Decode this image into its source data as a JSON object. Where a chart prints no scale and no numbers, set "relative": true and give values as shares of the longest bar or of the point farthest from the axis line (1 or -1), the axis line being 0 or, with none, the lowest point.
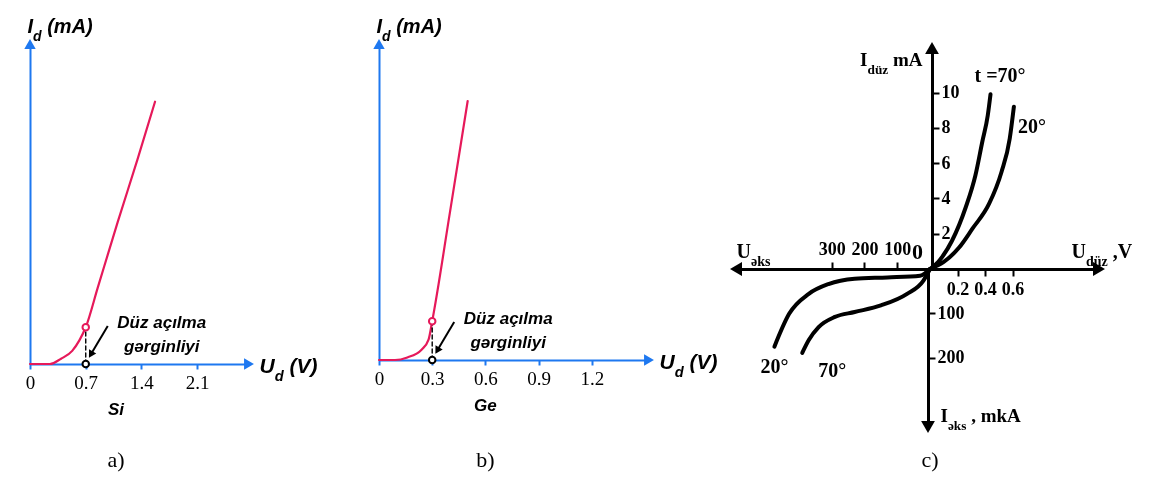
{
  "chart_data": [
    {
      "type": "line",
      "relative": true,
      "xlabel": "U$_{d}$ (V)",
      "ylabel": "I$_{d}$ (mA)",
      "xlim": [
        0,
        2.7
      ],
      "xticks": [
        0,
        0.7,
        1.4,
        2.1
      ],
      "x": [
        0,
        0.25,
        0.39,
        0.53,
        0.62,
        0.7,
        0.85,
        1.1,
        1.35,
        1.57
      ],
      "series": [
        {
          "color": "#e6195a",
          "values": [
            0,
            0,
            0.02,
            0.05,
            0.09,
            0.14,
            0.29,
            0.54,
            0.78,
            1
          ]
        },
        {
          "type": "line",
          "line_style": "dashed",
          "color": "#000000",
          "x": [
            0.7,
            0.7
          ],
          "values": [
            0,
            0.14
          ]
        },
        {
          "type": "scatter",
          "marker": "circle",
          "color": "#e6195a",
          "x": [
            0.7
          ],
          "values": [
            0.14
          ]
        },
        {
          "type": "scatter",
          "marker": "circle",
          "color": "#000000",
          "x": [
            0.7
          ],
          "values": [
            0
          ]
        }
      ],
      "annotations": [
        {
          "text": "Düz açılma gərginliyi",
          "x": 0.7,
          "y": 0
        },
        "Si",
        "a)"
      ]
    },
    {
      "type": "line",
      "relative": true,
      "xlabel": "U$_{d}$ (V)",
      "ylabel": "I$_{d}$ (mA)",
      "xlim": [
        0,
        1.5
      ],
      "xticks": [
        0,
        0.3,
        0.6,
        0.9,
        1.2
      ],
      "x": [
        0,
        0.09,
        0.16,
        0.24,
        0.28,
        0.3,
        0.4,
        0.5
      ],
      "series": [
        {
          "color": "#e6195a",
          "values": [
            0,
            0,
            0.01,
            0.04,
            0.08,
            0.15,
            0.57,
            1
          ]
        },
        {
          "type": "line",
          "line_style": "dashed",
          "color": "#000000",
          "x": [
            0.3,
            0.3
          ],
          "values": [
            0,
            0.15
          ]
        },
        {
          "type": "scatter",
          "marker": "circle",
          "color": "#e6195a",
          "x": [
            0.3
          ],
          "values": [
            0.15
          ]
        },
        {
          "type": "scatter",
          "marker": "circle",
          "color": "#000000",
          "x": [
            0.3
          ],
          "values": [
            0
          ]
        }
      ],
      "annotations": [
        {
          "text": "Düz açılma gərginliyi",
          "x": 0.3,
          "y": 0
        },
        "Ge",
        "b)"
      ]
    },
    {
      "type": "line",
      "xlabel": "U$_{düz}$ ,V",
      "ylabel": "I$_{düz}$ mA",
      "xlim": [
        0,
        1.2
      ],
      "xticks": [
        0.2,
        0.4,
        0.6
      ],
      "ylim": [
        0,
        12.3
      ],
      "yticks": [
        2,
        4,
        6,
        8,
        10
      ],
      "series": [
        {
          "name": "t =70°",
          "color": "#000000",
          "x": [
            0,
            0.07,
            0.16,
            0.26,
            0.33,
            0.38,
            0.42,
            0.44
          ],
          "values": [
            0,
            0.5,
            1.6,
            3.5,
            5.3,
            7.2,
            8.7,
            9.9
          ]
        },
        {
          "name": "20°",
          "color": "#000000",
          "x": [
            0,
            0.1,
            0.21,
            0.31,
            0.43,
            0.52,
            0.58,
            0.61
          ],
          "values": [
            0,
            0.4,
            1.2,
            2.3,
            3.7,
            5.5,
            7.4,
            9.2
          ]
        }
      ],
      "annotations": [
        "c)"
      ]
    },
    {
      "type": "line",
      "xlabel": "U$_{əks}$",
      "ylabel": "I$_{əks}$ , mkA",
      "xlim": [
        580,
        0
      ],
      "xticks": [
        100,
        200,
        300
      ],
      "ylim": [
        347,
        0
      ],
      "yticks": [
        100,
        200
      ],
      "series": [
        {
          "name": "20°",
          "color": "#000000",
          "x": [
            0,
            30,
            130,
            230,
            310,
            370,
            430,
            475
          ],
          "values": [
            0,
            15,
            19,
            22,
            34,
            56,
            101,
            175
          ]
        },
        {
          "name": "70°",
          "color": "#000000",
          "x": [
            0,
            20,
            70,
            150,
            230,
            290,
            340,
            370,
            390
          ],
          "values": [
            0,
            26,
            56,
            82,
            97,
            108,
            131,
            160,
            189
          ]
        }
      ],
      "annotations": [
        {
          "text": "0",
          "x": 0,
          "y": 0
        }
      ]
    }
  ]
}
